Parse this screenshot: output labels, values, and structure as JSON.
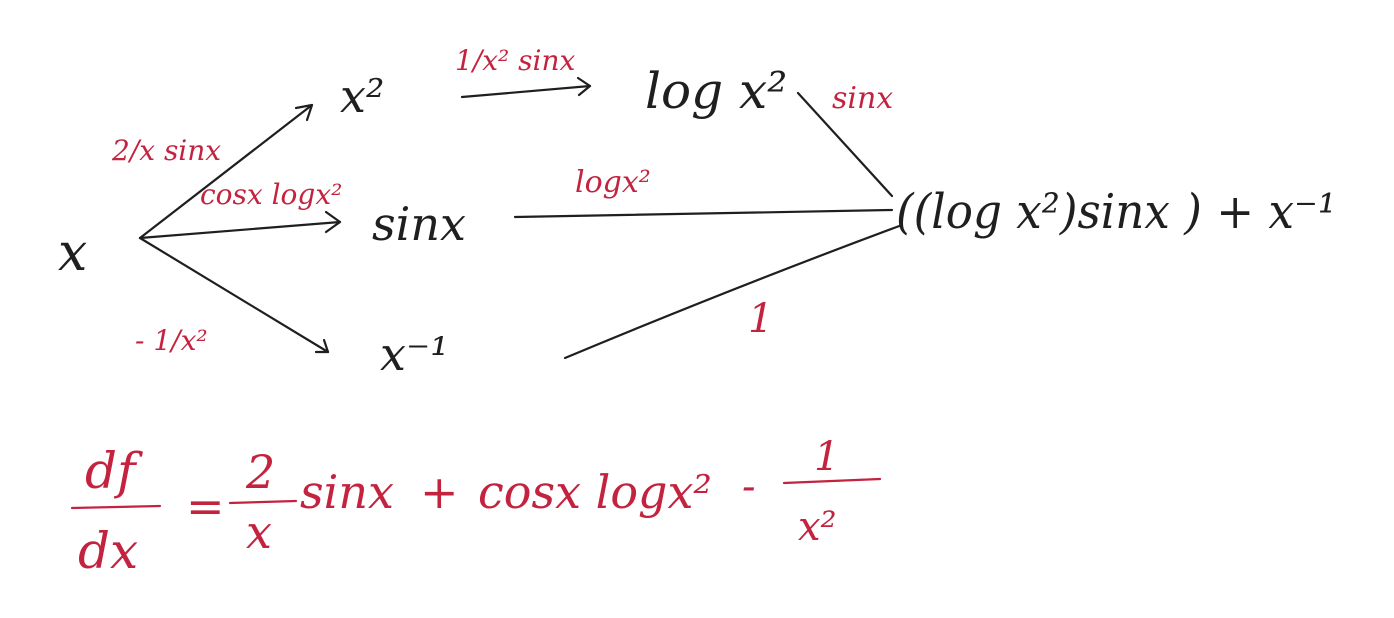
{
  "diagram": {
    "nodes": {
      "x": "x",
      "x_squared": "x²",
      "log_x_squared": "log x²",
      "sin_x": "sinx",
      "x_inverse": "x⁻¹",
      "result": "((log x²)sinx ) + x⁻¹"
    },
    "edge_labels": {
      "x_to_x_squared": "2/x sinx",
      "x_to_sin_x": "cosx logx²",
      "x_to_x_inverse": "- 1/x²",
      "x_squared_to_log": "1/x² sinx",
      "log_to_result": "sinx",
      "sin_x_to_result": "logx²",
      "x_inverse_to_result": "1"
    }
  },
  "equation": {
    "lhs_numerator": "df",
    "lhs_denominator": "dx",
    "equals": "=",
    "term1_numerator": "2",
    "term1_denominator": "x",
    "term1_rest": "sinx",
    "plus": "+",
    "term2": "cosx logx²",
    "minus": "-",
    "term3_numerator": "1",
    "term3_denominator": "x²"
  },
  "colors": {
    "ink": "#1f1f1f",
    "red_ink": "#c42340",
    "background": "#ffffff"
  }
}
